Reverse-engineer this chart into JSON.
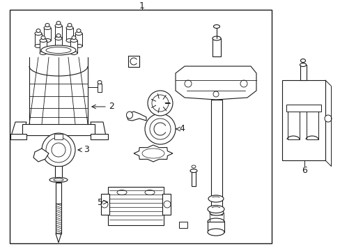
{
  "bg_color": "#ffffff",
  "line_color": "#1a1a1a",
  "label_1": "1",
  "label_2": "2",
  "label_3": "3",
  "label_4": "4",
  "label_5": "5",
  "label_6": "6",
  "font_size_labels": 9,
  "fig_width": 4.89,
  "fig_height": 3.6,
  "dpi": 100
}
